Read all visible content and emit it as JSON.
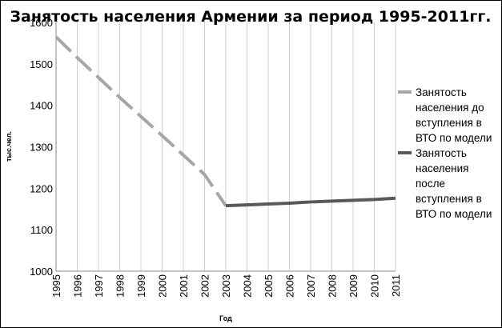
{
  "chart_data": {
    "type": "line",
    "title": "Занятость населения Армении за период 1995-2011гг.",
    "xlabel": "Год",
    "ylabel": "тыс.чел.",
    "categories": [
      "1995",
      "1996",
      "1997",
      "1998",
      "1999",
      "2000",
      "2001",
      "2002",
      "2003",
      "2004",
      "2005",
      "2006",
      "2007",
      "2008",
      "2009",
      "2010",
      "2011"
    ],
    "ylim": [
      1000,
      1600
    ],
    "yticks": [
      "1000",
      "1100",
      "1200",
      "1300",
      "1400",
      "1500",
      "1600"
    ],
    "grid": "vertical",
    "legend_position": "right",
    "series": [
      {
        "name": "Занятость населения до вступления в ВТО по модели",
        "legend_lines": [
          "Занятость",
          "населения до",
          "вступления в",
          "ВТО по модели"
        ],
        "color": "#a6a6a6",
        "style": "dashed",
        "x": [
          "1995",
          "1996",
          "1997",
          "1998",
          "1999",
          "2000",
          "2001",
          "2002",
          "2003"
        ],
        "values": [
          1565,
          1515,
          1467,
          1419,
          1373,
          1327,
          1280,
          1233,
          1158
        ]
      },
      {
        "name": "Занятость населения после вступления в ВТО по модели",
        "legend_lines": [
          "Занятость",
          "населения",
          "после",
          "вступления в",
          "ВТО по модели"
        ],
        "color": "#595959",
        "style": "solid",
        "x": [
          "2003",
          "2004",
          "2005",
          "2006",
          "2007",
          "2008",
          "2009",
          "2010",
          "2011"
        ],
        "values": [
          1158,
          1160,
          1162,
          1164,
          1167,
          1169,
          1171,
          1173,
          1176
        ]
      }
    ]
  }
}
